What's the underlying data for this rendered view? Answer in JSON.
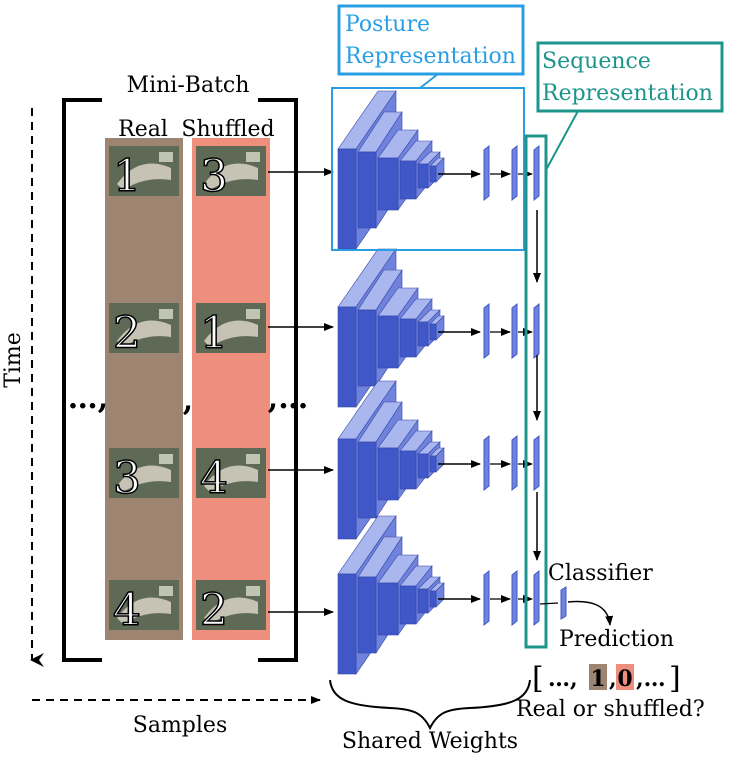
{
  "labels": {
    "mini_batch": "Mini-Batch",
    "real": "Real",
    "shuffled": "Shuffled",
    "time": "Time",
    "samples": "Samples",
    "ellipsis_left": "…,",
    "comma_mid": ",",
    "ellipsis_right": ",…",
    "posture_line1": "Posture",
    "posture_line2": "Representation",
    "sequence_line1": "Sequence",
    "sequence_line2": "Representation",
    "classifier": "Classifier",
    "prediction": "Prediction",
    "real_or_shuffled": "Real or shuffled?",
    "shared_weights": "Shared Weights"
  },
  "prediction_vector": {
    "open": "[",
    "lead": "…,",
    "val1": "1",
    "sep": ",",
    "val2": "0",
    "trail": ",…",
    "close": "]"
  },
  "frames": {
    "real": [
      "1",
      "2",
      "3",
      "4"
    ],
    "shuffled": [
      "3",
      "1",
      "4",
      "2"
    ]
  },
  "colors": {
    "real_column": "#9e8572",
    "shuffled_column": "#ee8e7c",
    "posture_box": "#2a9ee3",
    "sequence_box": "#1d958c",
    "cnn_front": "#3f57c7",
    "cnn_side": "#6f83dd",
    "cnn_top": "#aab6ee",
    "frame_bg": "#5e6a55"
  }
}
